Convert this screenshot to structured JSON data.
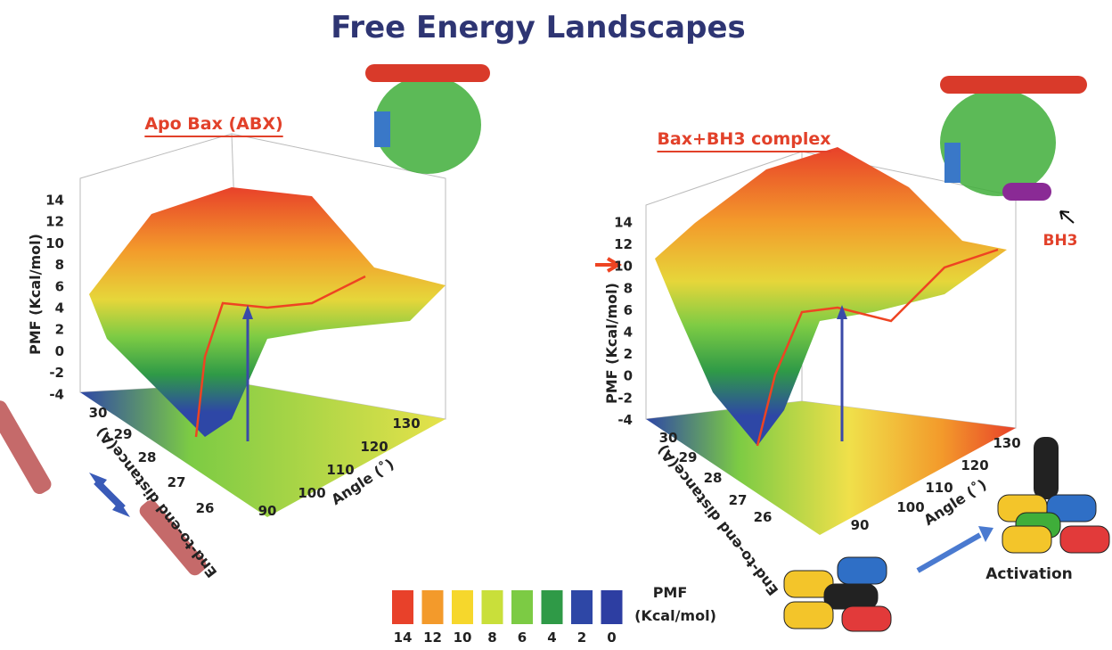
{
  "title": "Free Energy Landscapes",
  "panels": [
    {
      "title": "Apo Bax (ABX)",
      "z_label": "PMF (Kcal/mol)",
      "z_ticks": [
        "14",
        "12",
        "10",
        "8",
        "6",
        "4",
        "2",
        "0",
        "-2",
        "-4"
      ],
      "distance_label": "End-to-end distance(A)",
      "distance_ticks": [
        "30",
        "29",
        "28",
        "27",
        "26"
      ],
      "angle_label": "Angle (˚)",
      "angle_ticks": [
        "90",
        "100",
        "110",
        "120",
        "130"
      ]
    },
    {
      "title": "Bax+BH3 complex",
      "z_label": "PMF (Kcal/mol)",
      "z_ticks": [
        "14",
        "12",
        "10",
        "8",
        "6",
        "4",
        "2",
        "0",
        "-2",
        "-4"
      ],
      "distance_label": "End-to-end distance(A)",
      "distance_ticks": [
        "30",
        "29",
        "28",
        "27",
        "26"
      ],
      "angle_label": "Angle (˚)",
      "angle_ticks": [
        "90",
        "100",
        "110",
        "120",
        "130"
      ]
    }
  ],
  "annotations": {
    "bh3": "BH3",
    "activation": "Activation"
  },
  "colorbar": {
    "title_line1": "PMF",
    "title_line2": "(Kcal/mol)",
    "levels": [
      {
        "label": "14",
        "color": "#e8412a"
      },
      {
        "label": "12",
        "color": "#f39a2b"
      },
      {
        "label": "10",
        "color": "#f6d72c"
      },
      {
        "label": "8",
        "color": "#c9df3a"
      },
      {
        "label": "6",
        "color": "#7ccb44"
      },
      {
        "label": "4",
        "color": "#2f9a47"
      },
      {
        "label": "2",
        "color": "#2e47a6"
      },
      {
        "label": "0",
        "color": "#2d3ea2"
      }
    ]
  }
}
